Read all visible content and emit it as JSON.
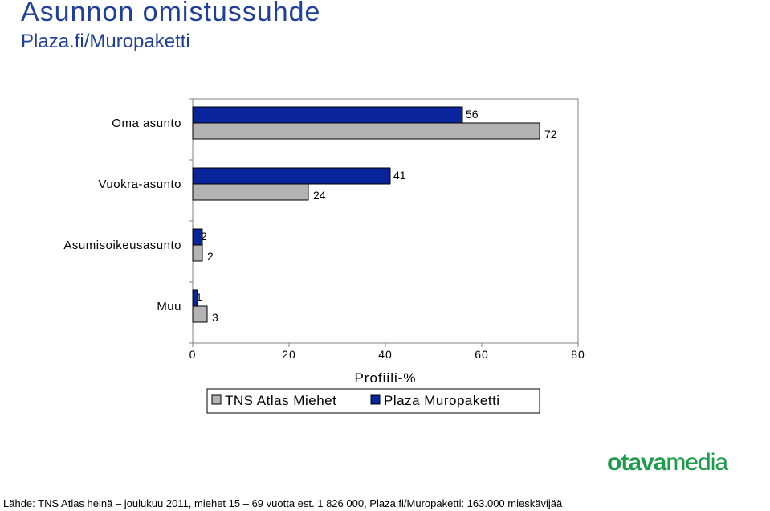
{
  "header": {
    "title": "Asunnon omistussuhde",
    "subtitle": "Plaza.fi/Muropaketti"
  },
  "chart_data": {
    "type": "bar",
    "orientation": "horizontal",
    "categories": [
      "Oma asunto",
      "Vuokra-asunto",
      "Asumisoikeusasunto",
      "Muu"
    ],
    "series": [
      {
        "name": "Plaza Muropaketti",
        "values": [
          56,
          41,
          2,
          1
        ],
        "color": "#0a249b"
      },
      {
        "name": "TNS Atlas Miehet",
        "values": [
          72,
          24,
          2,
          3
        ],
        "color": "#b3b3b3"
      }
    ],
    "xlabel": "Profiili-%",
    "ylabel": "",
    "xlim": [
      0,
      80
    ],
    "xticks": [
      "0",
      "20",
      "40",
      "60",
      "80"
    ],
    "grid": false,
    "legend": {
      "placement": "bottom",
      "entries": [
        "TNS Atlas Miehet",
        "Plaza Muropaketti"
      ]
    }
  },
  "logo": {
    "part1": "otava",
    "part2": "media"
  },
  "footer": {
    "source": "Lähde: TNS Atlas heinä – joulukuu 2011, miehet 15 – 69 vuotta est. 1 826 000, Plaza.fi/Muropaketti: 163.000 mieskävijää"
  }
}
